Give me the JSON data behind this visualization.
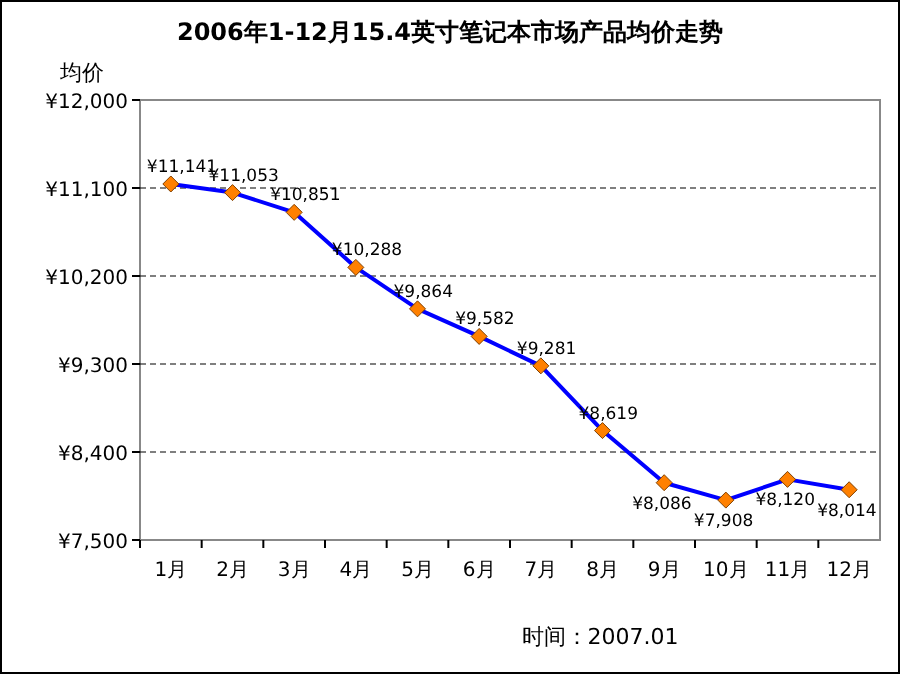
{
  "chart_data": {
    "type": "line",
    "title": "2006年1-12月15.4英寸笔记本市场产品均价走势",
    "ylabel": "均价",
    "annotations": [
      "时间：2007.01"
    ],
    "categories": [
      "1月",
      "2月",
      "3月",
      "4月",
      "5月",
      "6月",
      "7月",
      "8月",
      "9月",
      "10月",
      "11月",
      "12月"
    ],
    "series": [
      {
        "color": "#0000ff",
        "values": [
          11141,
          11053,
          10851,
          10288,
          9864,
          9582,
          9281,
          8619,
          8086,
          7908,
          8120,
          8014
        ],
        "value_labels": [
          "¥11,141",
          "¥11,053",
          "¥10,851",
          "¥10,288",
          "¥9,864",
          "¥9,582",
          "¥9,281",
          "¥8,619",
          "¥8,086",
          "¥7,908",
          "¥8,120",
          "¥8,014"
        ]
      }
    ],
    "ylim": [
      7500,
      12000
    ],
    "yticks": [
      {
        "value": 7500,
        "label": "¥7,500"
      },
      {
        "value": 8400,
        "label": "¥8,400"
      },
      {
        "value": 9300,
        "label": "¥9,300"
      },
      {
        "value": 10200,
        "label": "¥10,200"
      },
      {
        "value": 11100,
        "label": "¥11,100"
      },
      {
        "value": 12000,
        "label": "¥12,000"
      }
    ],
    "grid": "y",
    "marker": "diamond",
    "line_style": "solid"
  }
}
